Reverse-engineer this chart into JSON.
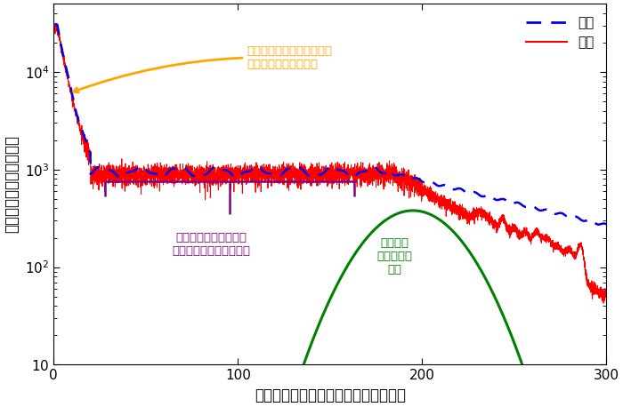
{
  "xlim": [
    0,
    300
  ],
  "ylim": [
    10,
    50000
  ],
  "xlabel": "電子の運動エネルギー（電子ボルト）",
  "ylabel": "電子の収量（任意単位）",
  "legend_exp": "実験",
  "legend_theory": "理論",
  "exp_color": "#0000ee",
  "theory_color": "#ff0000",
  "gauss_color": "#008000",
  "annotation1_text": "ナノプラズマから蒸発して\n来た低エネルギー電子",
  "annotation1_color": "#ffa500",
  "annotation2_text": "クラスターの正の電荷\nによって減速された電子",
  "annotation2_color": "#800080",
  "annotation3_text": "原子から\n飛び出した\n電子",
  "annotation3_color": "#008000",
  "background_color": "#ffffff",
  "xticks": [
    0,
    100,
    200,
    300
  ],
  "yticks": [
    10,
    100,
    1000,
    10000
  ]
}
